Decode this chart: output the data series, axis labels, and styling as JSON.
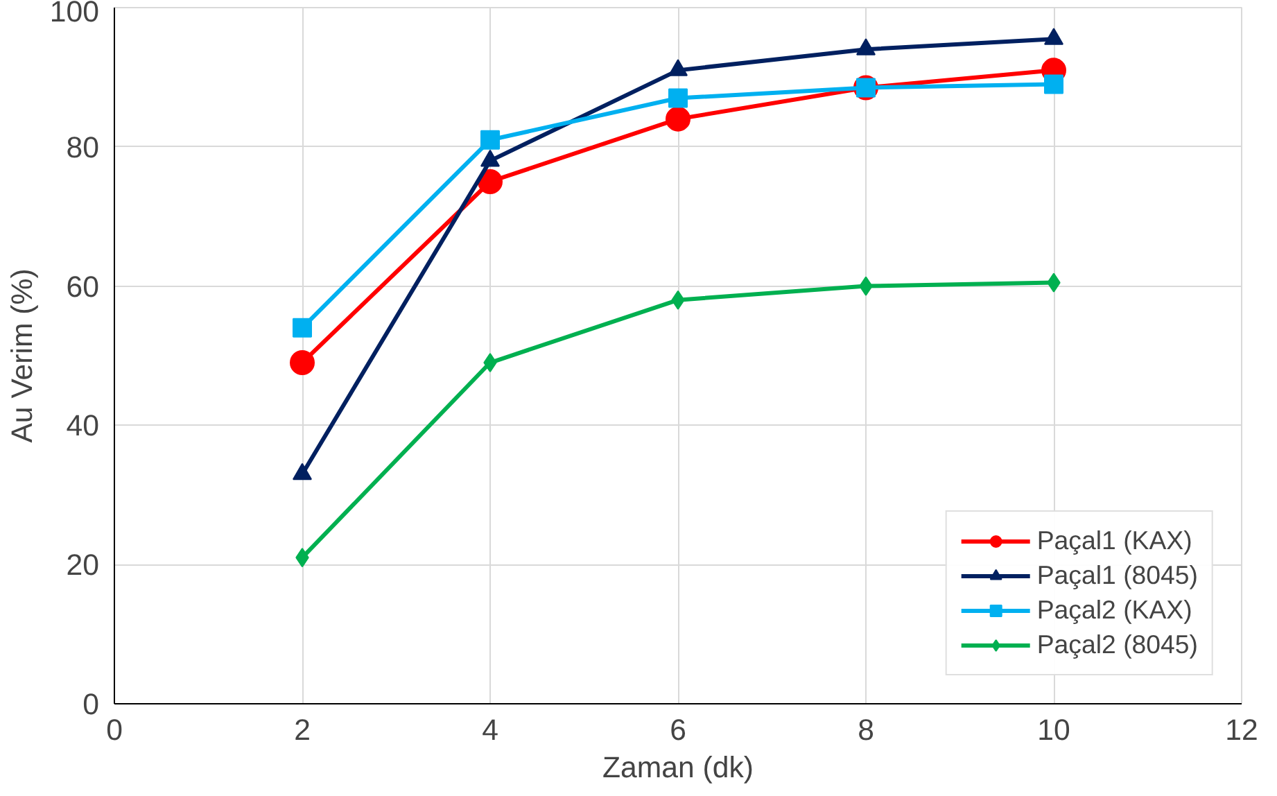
{
  "chart_data": {
    "type": "line",
    "xlabel": "Zaman (dk)",
    "ylabel": "Au Verim (%)",
    "x": [
      2,
      4,
      6,
      8,
      10
    ],
    "series": [
      {
        "name": "Paçal1 (KAX)",
        "color": "#ff0000",
        "marker": "circle",
        "values": [
          49,
          75,
          84,
          88.5,
          91
        ]
      },
      {
        "name": "Paçal1 (8045)",
        "color": "#002060",
        "marker": "triangle",
        "values": [
          33,
          78,
          91,
          94,
          95.5
        ]
      },
      {
        "name": "Paçal2 (KAX)",
        "color": "#00b0f0",
        "marker": "square",
        "values": [
          54,
          81,
          87,
          88.5,
          89
        ]
      },
      {
        "name": "Paçal2 (8045)",
        "color": "#00b050",
        "marker": "diamond",
        "values": [
          21,
          49,
          58,
          60,
          60.5
        ]
      }
    ],
    "xlim": [
      0,
      12
    ],
    "xticks": [
      0,
      2,
      4,
      6,
      8,
      10,
      12
    ],
    "ylim": [
      0,
      100
    ],
    "yticks": [
      0,
      20,
      40,
      60,
      80,
      100
    ],
    "grid": true,
    "legend": "bottom right",
    "line_style": "solid"
  }
}
